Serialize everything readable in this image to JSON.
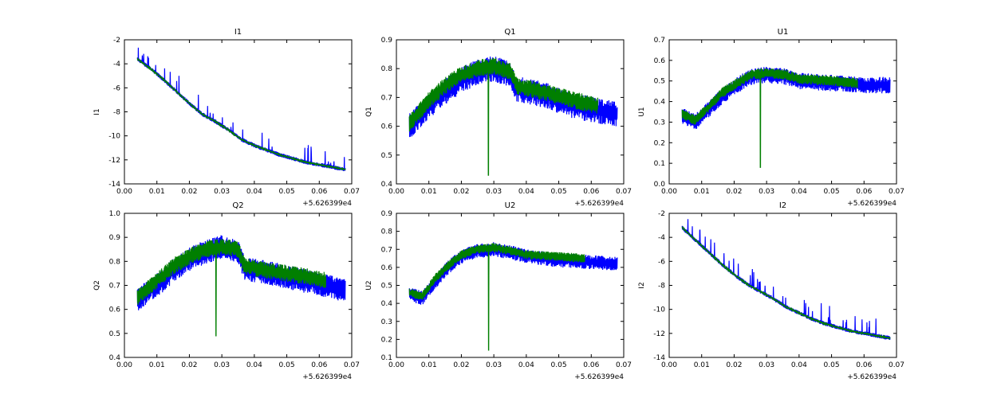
{
  "colors": {
    "series_a": "#0000ff",
    "series_b": "#007f00",
    "axes": "#000000",
    "background": "#ffffff"
  },
  "chart_data": [
    {
      "type": "line",
      "title": "I1",
      "xlabel": "",
      "ylabel": "I1",
      "xlim": [
        0.0,
        0.07
      ],
      "ylim": [
        -14,
        -2
      ],
      "xticks": [
        "0.00",
        "0.01",
        "0.02",
        "0.03",
        "0.04",
        "0.05",
        "0.06",
        "0.07"
      ],
      "yticks": [
        "-14",
        "-12",
        "-10",
        "-8",
        "-6",
        "-4",
        "-2"
      ],
      "xoffset_label": "+5.626399e4",
      "grid": false,
      "series": [
        {
          "color": "#0000ff",
          "x": [
            0.004,
            0.008,
            0.012,
            0.016,
            0.02,
            0.024,
            0.028,
            0.032,
            0.036,
            0.04,
            0.044,
            0.048,
            0.052,
            0.056,
            0.06,
            0.064,
            0.068
          ],
          "y": [
            -3.6,
            -4.4,
            -5.3,
            -6.3,
            -7.3,
            -8.2,
            -8.8,
            -9.5,
            -10.3,
            -10.8,
            -11.2,
            -11.6,
            -11.9,
            -12.2,
            -12.4,
            -12.6,
            -12.8
          ],
          "noise": 0.35,
          "spikes": 0.9
        },
        {
          "color": "#007f00",
          "x": [
            0.004,
            0.008,
            0.012,
            0.016,
            0.02,
            0.024,
            0.028,
            0.032,
            0.036,
            0.04,
            0.044,
            0.048,
            0.052,
            0.056,
            0.06,
            0.064,
            0.068
          ],
          "y": [
            -3.6,
            -4.4,
            -5.3,
            -6.3,
            -7.3,
            -8.2,
            -8.8,
            -9.5,
            -10.3,
            -10.8,
            -11.2,
            -11.6,
            -11.9,
            -12.2,
            -12.4,
            -12.6,
            -12.8
          ],
          "noise": 0.15,
          "spikes": 0
        }
      ]
    },
    {
      "type": "line",
      "title": "Q1",
      "xlabel": "",
      "ylabel": "Q1",
      "xlim": [
        0.0,
        0.07
      ],
      "ylim": [
        0.4,
        0.9
      ],
      "xticks": [
        "0.00",
        "0.01",
        "0.02",
        "0.03",
        "0.04",
        "0.05",
        "0.06",
        "0.07"
      ],
      "yticks": [
        "0.4",
        "0.5",
        "0.6",
        "0.7",
        "0.8",
        "0.9"
      ],
      "xoffset_label": "+5.626399e4",
      "grid": false,
      "series": [
        {
          "color": "#0000ff",
          "x": [
            0.004,
            0.01,
            0.015,
            0.02,
            0.025,
            0.03,
            0.035,
            0.037,
            0.045,
            0.055,
            0.068
          ],
          "y": [
            0.6,
            0.67,
            0.72,
            0.76,
            0.79,
            0.8,
            0.78,
            0.73,
            0.71,
            0.67,
            0.64
          ],
          "noise": 0.09,
          "spikes": 0
        },
        {
          "color": "#007f00",
          "x": [
            0.004,
            0.01,
            0.015,
            0.02,
            0.025,
            0.03,
            0.035,
            0.037,
            0.045,
            0.055,
            0.062
          ],
          "y": [
            0.61,
            0.69,
            0.74,
            0.78,
            0.8,
            0.81,
            0.79,
            0.74,
            0.72,
            0.69,
            0.67
          ],
          "noise": 0.06,
          "spikes": 0,
          "dip": {
            "x": 0.0283,
            "y": 0.43
          }
        }
      ]
    },
    {
      "type": "line",
      "title": "U1",
      "xlabel": "",
      "ylabel": "U1",
      "xlim": [
        0.0,
        0.07
      ],
      "ylim": [
        0.0,
        0.7
      ],
      "xticks": [
        "0.00",
        "0.01",
        "0.02",
        "0.03",
        "0.04",
        "0.05",
        "0.06",
        "0.07"
      ],
      "yticks": [
        "0.0",
        "0.1",
        "0.2",
        "0.3",
        "0.4",
        "0.5",
        "0.6",
        "0.7"
      ],
      "xoffset_label": "+5.626399e4",
      "grid": false,
      "series": [
        {
          "color": "#0000ff",
          "x": [
            0.004,
            0.008,
            0.012,
            0.016,
            0.02,
            0.025,
            0.03,
            0.036,
            0.04,
            0.05,
            0.06,
            0.068
          ],
          "y": [
            0.33,
            0.3,
            0.36,
            0.42,
            0.47,
            0.52,
            0.53,
            0.52,
            0.5,
            0.49,
            0.48,
            0.48
          ],
          "noise": 0.08,
          "spikes": 0
        },
        {
          "color": "#007f00",
          "x": [
            0.004,
            0.008,
            0.012,
            0.016,
            0.02,
            0.025,
            0.03,
            0.036,
            0.04,
            0.05,
            0.058
          ],
          "y": [
            0.34,
            0.31,
            0.37,
            0.44,
            0.48,
            0.53,
            0.54,
            0.53,
            0.51,
            0.5,
            0.49
          ],
          "noise": 0.05,
          "spikes": 0,
          "dip": {
            "x": 0.0281,
            "y": 0.08
          }
        }
      ]
    },
    {
      "type": "line",
      "title": "Q2",
      "xlabel": "",
      "ylabel": "Q2",
      "xlim": [
        0.0,
        0.07
      ],
      "ylim": [
        0.4,
        1.0
      ],
      "xticks": [
        "0.00",
        "0.01",
        "0.02",
        "0.03",
        "0.04",
        "0.05",
        "0.06",
        "0.07"
      ],
      "yticks": [
        "0.4",
        "0.5",
        "0.6",
        "0.7",
        "0.8",
        "0.9",
        "1.0"
      ],
      "xoffset_label": "+5.626399e4",
      "grid": false,
      "series": [
        {
          "color": "#0000ff",
          "x": [
            0.004,
            0.01,
            0.015,
            0.02,
            0.025,
            0.03,
            0.035,
            0.037,
            0.045,
            0.055,
            0.068
          ],
          "y": [
            0.64,
            0.7,
            0.76,
            0.81,
            0.84,
            0.86,
            0.84,
            0.77,
            0.75,
            0.72,
            0.68
          ],
          "noise": 0.1,
          "spikes": 0
        },
        {
          "color": "#007f00",
          "x": [
            0.004,
            0.01,
            0.015,
            0.02,
            0.025,
            0.03,
            0.035,
            0.037,
            0.045,
            0.055,
            0.062
          ],
          "y": [
            0.65,
            0.72,
            0.78,
            0.82,
            0.85,
            0.86,
            0.85,
            0.78,
            0.76,
            0.74,
            0.72
          ],
          "noise": 0.07,
          "spikes": 0,
          "dip": {
            "x": 0.0282,
            "y": 0.49
          }
        }
      ]
    },
    {
      "type": "line",
      "title": "U2",
      "xlabel": "",
      "ylabel": "U2",
      "xlim": [
        0.0,
        0.07
      ],
      "ylim": [
        0.1,
        0.9
      ],
      "xticks": [
        "0.00",
        "0.01",
        "0.02",
        "0.03",
        "0.04",
        "0.05",
        "0.06",
        "0.07"
      ],
      "yticks": [
        "0.1",
        "0.2",
        "0.3",
        "0.4",
        "0.5",
        "0.6",
        "0.7",
        "0.8",
        "0.9"
      ],
      "xoffset_label": "+5.626399e4",
      "grid": false,
      "series": [
        {
          "color": "#0000ff",
          "x": [
            0.004,
            0.008,
            0.012,
            0.016,
            0.02,
            0.025,
            0.03,
            0.036,
            0.04,
            0.05,
            0.06,
            0.068
          ],
          "y": [
            0.45,
            0.43,
            0.52,
            0.6,
            0.66,
            0.69,
            0.7,
            0.68,
            0.66,
            0.64,
            0.63,
            0.62
          ],
          "noise": 0.08,
          "spikes": 0
        },
        {
          "color": "#007f00",
          "x": [
            0.004,
            0.008,
            0.012,
            0.016,
            0.02,
            0.025,
            0.03,
            0.036,
            0.04,
            0.05,
            0.058
          ],
          "y": [
            0.46,
            0.44,
            0.54,
            0.61,
            0.67,
            0.7,
            0.71,
            0.69,
            0.67,
            0.66,
            0.65
          ],
          "noise": 0.05,
          "spikes": 0,
          "dip": {
            "x": 0.0284,
            "y": 0.14
          }
        }
      ]
    },
    {
      "type": "line",
      "title": "I2",
      "xlabel": "",
      "ylabel": "I2",
      "xlim": [
        0.0,
        0.07
      ],
      "ylim": [
        -14,
        -2
      ],
      "xticks": [
        "0.00",
        "0.01",
        "0.02",
        "0.03",
        "0.04",
        "0.05",
        "0.06",
        "0.07"
      ],
      "yticks": [
        "-14",
        "-12",
        "-10",
        "-8",
        "-6",
        "-4",
        "-2"
      ],
      "xoffset_label": "+5.626399e4",
      "grid": false,
      "series": [
        {
          "color": "#0000ff",
          "x": [
            0.004,
            0.008,
            0.012,
            0.016,
            0.02,
            0.024,
            0.028,
            0.032,
            0.036,
            0.04,
            0.044,
            0.048,
            0.052,
            0.056,
            0.06,
            0.064,
            0.068
          ],
          "y": [
            -3.2,
            -4.2,
            -5.2,
            -6.2,
            -7.1,
            -7.9,
            -8.5,
            -9.1,
            -9.8,
            -10.3,
            -10.8,
            -11.2,
            -11.5,
            -11.8,
            -12.0,
            -12.2,
            -12.4
          ],
          "noise": 0.35,
          "spikes": 1.0
        },
        {
          "color": "#007f00",
          "x": [
            0.004,
            0.008,
            0.012,
            0.016,
            0.02,
            0.024,
            0.028,
            0.032,
            0.036,
            0.04,
            0.044,
            0.048,
            0.052,
            0.056,
            0.06,
            0.064,
            0.068
          ],
          "y": [
            -3.2,
            -4.2,
            -5.2,
            -6.2,
            -7.1,
            -7.9,
            -8.5,
            -9.1,
            -9.8,
            -10.3,
            -10.8,
            -11.2,
            -11.5,
            -11.8,
            -12.0,
            -12.2,
            -12.4
          ],
          "noise": 0.15,
          "spikes": 0
        }
      ]
    }
  ]
}
